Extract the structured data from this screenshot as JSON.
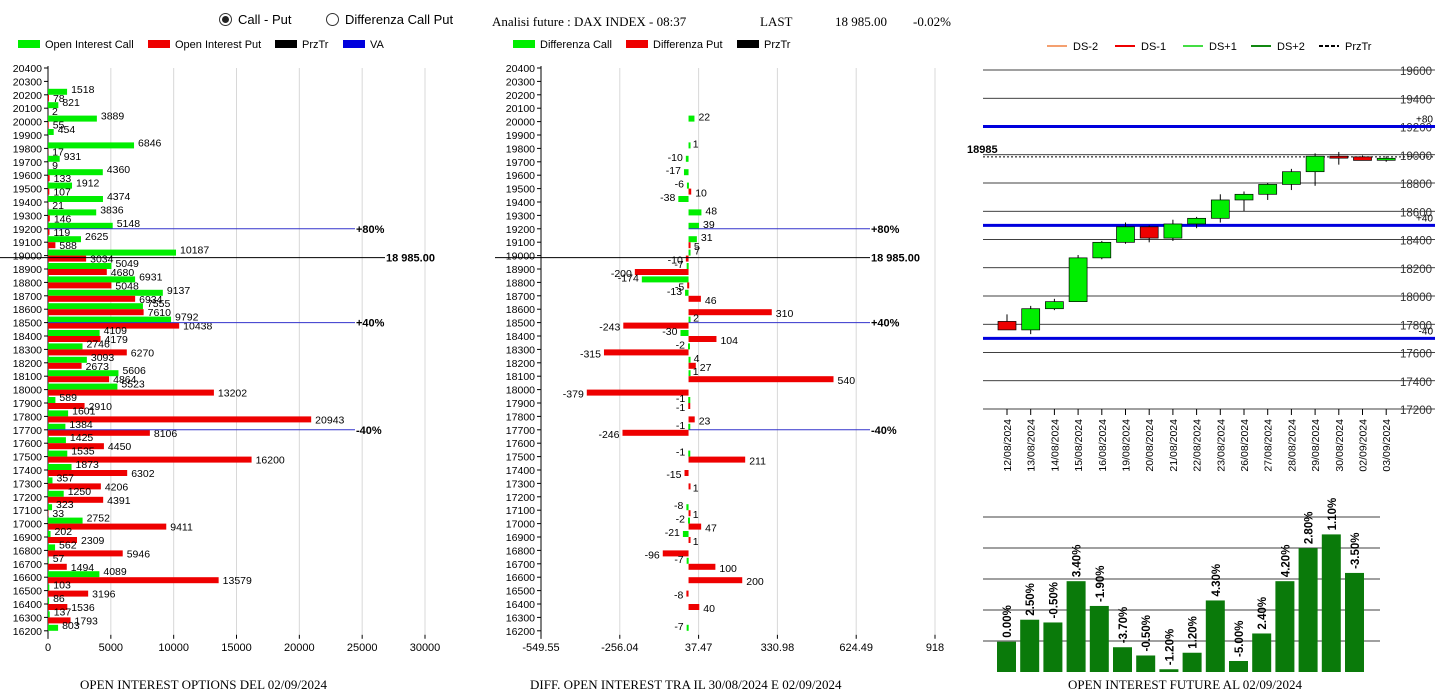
{
  "header": {
    "radio_call_put": "Call - Put",
    "radio_diff": "Differenza Call Put",
    "title": "Analisi future : DAX INDEX - 08:37",
    "last_label": "LAST",
    "last_value": "18 985.00",
    "change": "-0.02%"
  },
  "footers": {
    "left": "OPEN INTEREST OPTIONS DEL 02/09/2024",
    "middle": "DIFF. OPEN INTEREST TRA IL 30/08/2024 E 02/09/2024",
    "right": "OPEN INTEREST FUTURE AL 02/09/2024"
  },
  "colors": {
    "call": "#00ee00",
    "put": "#ee0000",
    "przTr": "#000000",
    "va": "#0000dd",
    "dark_green": "#0a7a0a"
  },
  "chart_data": [
    {
      "type": "bar",
      "orientation": "horizontal",
      "legend": [
        "Open Interest Call",
        "Open Interest Put",
        "PrzTr",
        "VA"
      ],
      "strikes": [
        20400,
        20300,
        20200,
        20100,
        20000,
        19900,
        19800,
        19700,
        19600,
        19500,
        19400,
        19300,
        19200,
        19100,
        19000,
        18900,
        18800,
        18700,
        18600,
        18500,
        18400,
        18300,
        18200,
        18100,
        18000,
        17900,
        17800,
        17700,
        17600,
        17500,
        17400,
        17300,
        17200,
        17100,
        17000,
        16900,
        16800,
        16700,
        16600,
        16500,
        16400,
        16300,
        16200
      ],
      "series": [
        {
          "name": "Open Interest Call",
          "values": [
            0,
            0,
            1518,
            821,
            3889,
            454,
            6846,
            931,
            4360,
            1912,
            4374,
            3836,
            5148,
            2625,
            10187,
            5049,
            6931,
            9137,
            7555,
            9792,
            4109,
            2746,
            3093,
            5606,
            5523,
            589,
            1601,
            1384,
            1425,
            1535,
            1873,
            357,
            1250,
            323,
            2752,
            202,
            562,
            57,
            4089,
            103,
            86,
            137,
            803
          ]
        },
        {
          "name": "Open Interest Put",
          "values": [
            0,
            0,
            78,
            2,
            55,
            0,
            17,
            9,
            133,
            107,
            21,
            146,
            119,
            588,
            3034,
            4680,
            5048,
            6934,
            7610,
            10438,
            4179,
            6270,
            2673,
            4864,
            13202,
            2910,
            20943,
            8106,
            4450,
            16200,
            6302,
            4206,
            4391,
            33,
            9411,
            2309,
            5946,
            1494,
            13579,
            3196,
            1536,
            1793,
            0
          ]
        }
      ],
      "xticks": [
        0,
        5000,
        10000,
        15000,
        20000,
        25000,
        30000
      ],
      "xlim": [
        0,
        30000
      ],
      "reference_lines": [
        {
          "label": "+80%",
          "strike": 19200
        },
        {
          "label": "18 985.00",
          "strike": 18985
        },
        {
          "label": "+40%",
          "strike": 18500
        },
        {
          "label": "-40%",
          "strike": 17700
        }
      ]
    },
    {
      "type": "bar",
      "orientation": "horizontal",
      "legend": [
        "Differenza Call",
        "Differenza Put",
        "PrzTr"
      ],
      "strikes": [
        20400,
        20300,
        20200,
        20100,
        20000,
        19900,
        19800,
        19700,
        19600,
        19500,
        19400,
        19300,
        19200,
        19100,
        19000,
        18900,
        18800,
        18700,
        18600,
        18500,
        18400,
        18300,
        18200,
        18100,
        18000,
        17900,
        17800,
        17700,
        17600,
        17500,
        17400,
        17300,
        17200,
        17100,
        17000,
        16900,
        16800,
        16700,
        16600,
        16500,
        16400,
        16300,
        16200
      ],
      "series": [
        {
          "name": "Differenza Call",
          "values": [
            0,
            0,
            0,
            0,
            22,
            0,
            1,
            -10,
            -17,
            -6,
            -38,
            48,
            39,
            31,
            7,
            -7,
            -174,
            -13,
            0,
            2,
            -30,
            -2,
            4,
            1,
            0,
            -1,
            0,
            -1,
            0,
            -1,
            0,
            0,
            0,
            -8,
            -2,
            -21,
            0,
            -7,
            0,
            0,
            0,
            0,
            -7
          ]
        },
        {
          "name": "Differenza Put",
          "values": [
            0,
            0,
            0,
            0,
            0,
            0,
            0,
            0,
            0,
            10,
            0,
            0,
            0,
            5,
            -10,
            -200,
            -5,
            46,
            310,
            -243,
            104,
            -315,
            27,
            540,
            -379,
            -1,
            23,
            -246,
            0,
            211,
            -15,
            1,
            0,
            1,
            47,
            1,
            -96,
            100,
            200,
            -8,
            40,
            0,
            0
          ]
        }
      ],
      "xticks": [
        "-549.55",
        "-256.04",
        "37.47",
        "330.98",
        "624.49",
        "918"
      ],
      "xlim": [
        -549.55,
        918
      ],
      "reference_lines": [
        {
          "label": "+80%",
          "strike": 19200
        },
        {
          "label": "18 985.00",
          "strike": 18985
        },
        {
          "label": "+40%",
          "strike": 18500
        },
        {
          "label": "-40%",
          "strike": 17700
        }
      ]
    },
    {
      "type": "candlestick",
      "legend": [
        "DS-2",
        "DS-1",
        "DS+1",
        "DS+2",
        "PrzTr"
      ],
      "dates": [
        "12/08/2024",
        "13/08/2024",
        "14/08/2024",
        "15/08/2024",
        "16/08/2024",
        "19/08/2024",
        "20/08/2024",
        "21/08/2024",
        "22/08/2024",
        "23/08/2024",
        "26/08/2024",
        "27/08/2024",
        "28/08/2024",
        "29/08/2024",
        "30/08/2024",
        "02/09/2024",
        "03/09/2024"
      ],
      "ohlc": [
        [
          17820,
          17870,
          17760,
          17760
        ],
        [
          17760,
          17930,
          17730,
          17910
        ],
        [
          17910,
          17980,
          17900,
          17960
        ],
        [
          17960,
          18290,
          17960,
          18270
        ],
        [
          18270,
          18390,
          18260,
          18380
        ],
        [
          18380,
          18520,
          18370,
          18490
        ],
        [
          18490,
          18500,
          18380,
          18410
        ],
        [
          18410,
          18540,
          18390,
          18510
        ],
        [
          18510,
          18560,
          18480,
          18550
        ],
        [
          18550,
          18720,
          18520,
          18680
        ],
        [
          18680,
          18740,
          18600,
          18720
        ],
        [
          18720,
          18800,
          18680,
          18790
        ],
        [
          18790,
          18900,
          18750,
          18880
        ],
        [
          18880,
          19010,
          18780,
          18990
        ],
        [
          18990,
          19020,
          18930,
          18980
        ],
        [
          18985,
          18995,
          18970,
          18960
        ],
        [
          18970,
          18990,
          18950,
          18975
        ]
      ],
      "yticks": [
        17200,
        17400,
        17600,
        17800,
        18000,
        18200,
        18400,
        18600,
        18800,
        19000,
        19200,
        19400,
        19600
      ],
      "ylim": [
        17200,
        19600
      ],
      "price_label": "18985",
      "price": 18985,
      "bands": [
        {
          "label": "+80",
          "value": 19200
        },
        {
          "label": "+40",
          "value": 18500
        },
        {
          "label": "-40",
          "value": 17700
        }
      ]
    },
    {
      "type": "bar",
      "labels": [
        "0.00%",
        "2.50%",
        "-0.50%",
        "3.40%",
        "-1.90%",
        "-3.70%",
        "-0.50%",
        "-1.20%",
        "1.20%",
        "4.30%",
        "-5.00%",
        "2.40%",
        "4.20%",
        "2.80%",
        "1.10%",
        "-3.50%"
      ],
      "values": [
        0.11,
        0.19,
        0.18,
        0.33,
        0.24,
        0.09,
        0.06,
        0.01,
        0.07,
        0.26,
        0.04,
        0.14,
        0.33,
        0.45,
        0.5,
        0.36
      ]
    }
  ]
}
